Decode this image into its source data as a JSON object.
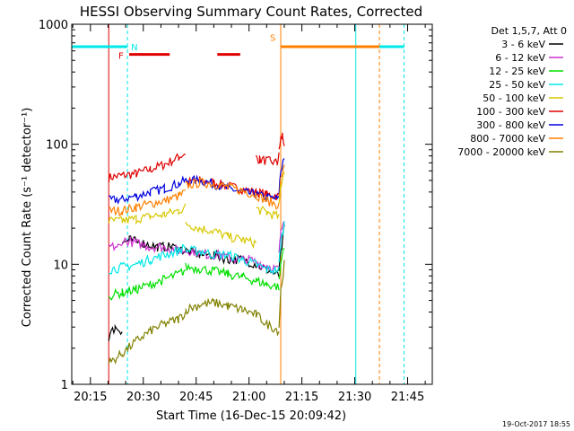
{
  "chart_data": {
    "type": "line",
    "title": "HESSI Observing Summary Count Rates, Corrected",
    "ylabel": "Corrected Count Rate (s⁻¹ detector⁻¹)",
    "xlabel": "Start Time (16-Dec-15 20:09:42)",
    "x_ticks": [
      "20:15",
      "20:30",
      "20:45",
      "21:00",
      "21:15",
      "21:30",
      "21:45"
    ],
    "x_tick_minutes": [
      15,
      30,
      45,
      60,
      75,
      90,
      105
    ],
    "x_range_minutes": [
      9.7,
      112.0
    ],
    "y_scale": "log",
    "ylim": [
      1,
      1000
    ],
    "y_ticks": [
      "1",
      "10",
      "100",
      "1000"
    ],
    "timestamp": "19-Oct-2017 18:55",
    "legend": {
      "placement": "right",
      "header": "Det 1,5,7, Att 0",
      "entries": [
        {
          "label": "3 - 6 keV",
          "color": "#000000"
        },
        {
          "label": "6 - 12 keV",
          "color": "#d030d0"
        },
        {
          "label": "12 - 25 keV",
          "color": "#00e000"
        },
        {
          "label": "25 - 50 keV",
          "color": "#00e8e8"
        },
        {
          "label": "50 - 100 keV",
          "color": "#d8c800"
        },
        {
          "label": "100 - 300 keV",
          "color": "#e00000"
        },
        {
          "label": "300 - 800 keV",
          "color": "#0000e0"
        },
        {
          "label": "800 - 7000 keV",
          "color": "#ff8000"
        },
        {
          "label": "7000 - 20000 keV",
          "color": "#808000"
        }
      ]
    },
    "series": [
      {
        "color": "#e00000",
        "segments": [
          {
            "t": [
              20.2,
              24,
              28,
              32,
              36,
              40,
              42
            ],
            "y": [
              53,
              55,
              57,
              62,
              68,
              78,
              85
            ]
          },
          {
            "t": [
              42,
              46,
              50,
              54,
              58,
              62,
              65,
              68.5
            ],
            "y": [
              48,
              50,
              48,
              45,
              42,
              40,
              38,
              37
            ]
          },
          {
            "t": [
              62,
              63,
              66,
              68,
              68.5
            ],
            "y": [
              78,
              75,
              72,
              70,
              80
            ]
          },
          {
            "t": [
              68.5,
              69,
              69.5,
              70
            ],
            "y": [
              90,
              110,
              120,
              100
            ]
          }
        ]
      },
      {
        "color": "#0000e0",
        "segments": [
          {
            "t": [
              20.2,
              24,
              28,
              32,
              36,
              40,
              42
            ],
            "y": [
              34,
              35,
              37,
              40,
              43,
              47,
              50
            ]
          },
          {
            "t": [
              42,
              46,
              50,
              54,
              58,
              62,
              65,
              68.5
            ],
            "y": [
              50,
              50,
              47,
              43,
              40,
              38,
              36,
              35
            ]
          },
          {
            "t": [
              68.5,
              69,
              70
            ],
            "y": [
              40,
              60,
              80
            ]
          }
        ]
      },
      {
        "color": "#ff8000",
        "segments": [
          {
            "t": [
              20.2,
              24,
              28,
              32,
              36,
              40,
              42
            ],
            "y": [
              28,
              28,
              30,
              32,
              34,
              37,
              40
            ]
          },
          {
            "t": [
              42,
              46,
              50,
              54,
              58,
              62,
              65,
              68.5
            ],
            "y": [
              45,
              48,
              47,
              44,
              41,
              38,
              34,
              31
            ]
          },
          {
            "t": [
              68.5,
              69,
              70
            ],
            "y": [
              35,
              50,
              70
            ]
          }
        ]
      },
      {
        "color": "#d8c800",
        "segments": [
          {
            "t": [
              20.2,
              24,
              28,
              32,
              36,
              40,
              42
            ],
            "y": [
              23,
              23,
              24,
              25,
              26,
              28,
              30
            ]
          },
          {
            "t": [
              42,
              46,
              50,
              54,
              58,
              62
            ],
            "y": [
              22,
              20,
              19,
              17,
              16,
              15
            ]
          },
          {
            "t": [
              62,
              65,
              68.5
            ],
            "y": [
              29,
              27,
              25
            ]
          },
          {
            "t": [
              68.5,
              69,
              70
            ],
            "y": [
              30,
              45,
              60
            ]
          }
        ]
      },
      {
        "color": "#000000",
        "segments": [
          {
            "t": [
              20.2,
              22,
              24
            ],
            "y": [
              2.5,
              3,
              2.8
            ]
          },
          {
            "t": [
              24,
              26,
              30,
              34,
              38,
              42,
              46,
              50,
              54,
              58,
              62,
              65,
              68.5
            ],
            "y": [
              15,
              16,
              15,
              14,
              14,
              13,
              12,
              12,
              11,
              11,
              10,
              9,
              8
            ]
          },
          {
            "t": [
              68.5,
              69,
              70
            ],
            "y": [
              9,
              12,
              20
            ]
          }
        ]
      },
      {
        "color": "#d030d0",
        "segments": [
          {
            "t": [
              20.2,
              24
            ],
            "y": [
              14,
              14
            ]
          },
          {
            "t": [
              24,
              28,
              32,
              36,
              40,
              44,
              48,
              52,
              56,
              60,
              64,
              68.5
            ],
            "y": [
              16,
              15,
              14,
              14,
              13,
              13,
              12,
              12,
              11,
              11,
              10,
              9
            ]
          },
          {
            "t": [
              68.5,
              69,
              70
            ],
            "y": [
              12,
              18,
              25
            ]
          }
        ]
      },
      {
        "color": "#00e8e8",
        "segments": [
          {
            "t": [
              20.2,
              24,
              28,
              32,
              36,
              40,
              42
            ],
            "y": [
              9,
              9.5,
              10,
              11,
              12,
              13,
              14
            ]
          },
          {
            "t": [
              42,
              46,
              50,
              54,
              58,
              62,
              65,
              68.5
            ],
            "y": [
              13,
              13,
              12,
              12,
              11,
              10,
              9,
              9
            ]
          },
          {
            "t": [
              68.5,
              69,
              70
            ],
            "y": [
              10,
              15,
              22
            ]
          }
        ]
      },
      {
        "color": "#00e000",
        "segments": [
          {
            "t": [
              20.2,
              24,
              28,
              32,
              36,
              40,
              42
            ],
            "y": [
              5.5,
              5.8,
              6.2,
              6.8,
              7.5,
              8.3,
              9
            ]
          },
          {
            "t": [
              42,
              46,
              50,
              54,
              58,
              62,
              65,
              68.5
            ],
            "y": [
              9.5,
              9.2,
              8.8,
              8.3,
              7.8,
              7.3,
              6.8,
              6.5
            ]
          },
          {
            "t": [
              68.5,
              69,
              70
            ],
            "y": [
              7,
              10,
              15
            ]
          }
        ]
      },
      {
        "color": "#808000",
        "segments": [
          {
            "t": [
              20.2,
              24,
              28,
              32,
              36,
              40,
              42
            ],
            "y": [
              1.5,
              1.8,
              2.3,
              2.8,
              3.2,
              3.5,
              4
            ]
          },
          {
            "t": [
              42,
              46,
              50,
              54,
              58,
              62,
              65,
              68.5
            ],
            "y": [
              4.2,
              4.6,
              4.8,
              4.5,
              4.2,
              3.8,
              3.2,
              2.8
            ]
          },
          {
            "t": [
              68.5,
              69,
              70
            ],
            "y": [
              3,
              6,
              10
            ]
          }
        ]
      }
    ],
    "markers": [
      {
        "label": "N",
        "color": "#00e8e8",
        "t": 25.5,
        "bar": [
          9.7,
          25.5
        ]
      },
      {
        "label": "F",
        "color": "#e00000",
        "bars": [
          [
            26,
            37.5
          ],
          [
            51,
            57.5
          ]
        ]
      },
      {
        "label": "S",
        "color": "#ff8000",
        "t": 69,
        "bar": [
          69,
          97
        ]
      }
    ],
    "vlines": [
      {
        "t": 9.7,
        "color": "#00e8e8",
        "style": "solid"
      },
      {
        "t": 25.5,
        "color": "#00e8e8",
        "style": "dashed"
      },
      {
        "t": 20.2,
        "color": "#e00000",
        "style": "solid"
      },
      {
        "t": 69,
        "color": "#ff8000",
        "style": "solid"
      },
      {
        "t": 90.3,
        "color": "#00e8e8",
        "style": "solid"
      },
      {
        "t": 97,
        "color": "#ff8000",
        "style": "dashed"
      },
      {
        "t": 104,
        "color": "#00e8e8",
        "style": "dashed"
      }
    ],
    "hbars": [
      {
        "t0": 90.3,
        "t1": 104,
        "color": "#00e8e8",
        "y": 650
      }
    ]
  }
}
